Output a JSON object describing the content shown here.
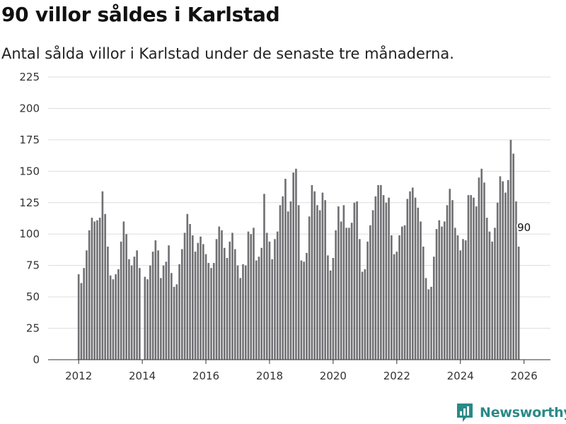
{
  "title": "90 villor såldes i Karlstad",
  "subtitle": "Antal sålda villor i Karlstad under de senaste tre månaderna.",
  "brand": {
    "name": "Newsworthy",
    "icon": "newsworthy-logo-icon",
    "color": "#2a8a88"
  },
  "colors": {
    "bar": "#707074",
    "highlight": "#2a9c96",
    "grid": "#dddddd",
    "axis": "#333333"
  },
  "chart_data": {
    "type": "bar",
    "title": "90 villor såldes i Karlstad",
    "subtitle": "Antal sålda villor i Karlstad under de senaste tre månaderna.",
    "xlabel": "",
    "ylabel": "",
    "ylim": [
      0,
      225
    ],
    "yticks": [
      0,
      25,
      50,
      75,
      100,
      125,
      150,
      175,
      200,
      225
    ],
    "xlim": [
      2011.04,
      2026.83
    ],
    "xticks": [
      2012,
      2014,
      2016,
      2018,
      2020,
      2022,
      2024,
      2026
    ],
    "xtick_labels": [
      "2012",
      "2014",
      "2016",
      "2018",
      "2020",
      "2022",
      "2024",
      "2026"
    ],
    "grid": true,
    "series_start": 2012,
    "step": "monthly",
    "values": [
      68,
      61,
      73,
      87,
      103,
      113,
      110,
      111,
      113,
      134,
      116,
      90,
      67,
      64,
      68,
      72,
      94,
      110,
      100,
      80,
      75,
      82,
      87,
      73,
      0,
      66,
      64,
      75,
      86,
      95,
      87,
      65,
      75,
      78,
      91,
      69,
      58,
      60,
      76,
      88,
      101,
      116,
      108,
      99,
      86,
      93,
      98,
      92,
      84,
      77,
      73,
      77,
      96,
      106,
      103,
      89,
      81,
      94,
      101,
      88,
      75,
      65,
      76,
      75,
      102,
      100,
      105,
      79,
      82,
      89,
      132,
      101,
      94,
      80,
      96,
      102,
      123,
      130,
      144,
      118,
      126,
      149,
      152,
      123,
      79,
      78,
      85,
      114,
      139,
      134,
      123,
      119,
      133,
      127,
      83,
      71,
      81,
      103,
      122,
      110,
      123,
      105,
      105,
      109,
      125,
      126,
      96,
      70,
      72,
      94,
      107,
      119,
      130,
      139,
      139,
      131,
      125,
      129,
      99,
      84,
      86,
      99,
      106,
      107,
      128,
      134,
      137,
      129,
      121,
      110,
      90,
      65,
      56,
      58,
      82,
      104,
      111,
      106,
      110,
      123,
      136,
      127,
      105,
      99,
      87,
      96,
      95,
      131,
      131,
      129,
      122,
      145,
      152,
      141,
      113,
      102,
      94,
      105,
      125,
      146,
      142,
      133,
      143,
      175,
      164,
      126,
      90
    ],
    "highlight": {
      "index": 168,
      "value": 90,
      "label": "90"
    }
  }
}
